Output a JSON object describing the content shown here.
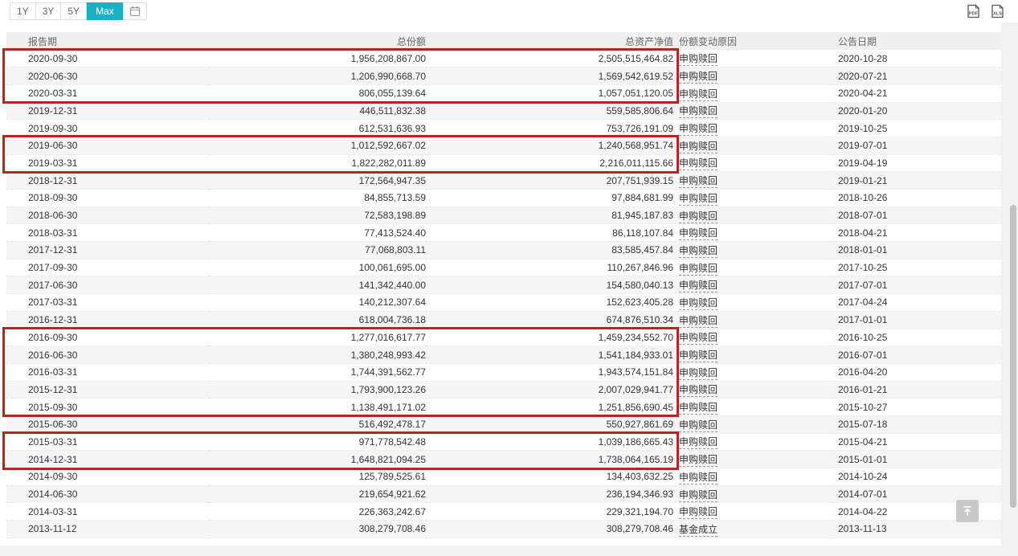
{
  "colors": {
    "accent": "#1bb0c4",
    "highlight_border": "#b3281e",
    "header_bg": "#efefef",
    "stripe_bg": "#f5f5f5"
  },
  "toolbar": {
    "range_buttons": [
      {
        "label": "1Y",
        "active": false
      },
      {
        "label": "3Y",
        "active": false
      },
      {
        "label": "5Y",
        "active": false
      },
      {
        "label": "Max",
        "active": true
      }
    ],
    "export": {
      "pdf_label": "PDF",
      "xls_label": "XLS"
    }
  },
  "table": {
    "columns": [
      "报告期",
      "总份额",
      "总资产净值",
      "份额变动原因",
      "公告日期"
    ],
    "rows": [
      {
        "period": "2020-09-30",
        "shares": "1,956,208,867.00",
        "nav": "2,505,515,464.82",
        "reason": "申购赎回",
        "date": "2020-10-28"
      },
      {
        "period": "2020-06-30",
        "shares": "1,206,990,668.70",
        "nav": "1,569,542,619.52",
        "reason": "申购赎回",
        "date": "2020-07-21"
      },
      {
        "period": "2020-03-31",
        "shares": "806,055,139.64",
        "nav": "1,057,051,120.05",
        "reason": "申购赎回",
        "date": "2020-04-21"
      },
      {
        "period": "2019-12-31",
        "shares": "446,511,832.38",
        "nav": "559,585,806.64",
        "reason": "申购赎回",
        "date": "2020-01-20"
      },
      {
        "period": "2019-09-30",
        "shares": "612,531,636.93",
        "nav": "753,726,191.09",
        "reason": "申购赎回",
        "date": "2019-10-25"
      },
      {
        "period": "2019-06-30",
        "shares": "1,012,592,667.02",
        "nav": "1,240,568,951.74",
        "reason": "申购赎回",
        "date": "2019-07-01"
      },
      {
        "period": "2019-03-31",
        "shares": "1,822,282,011.89",
        "nav": "2,216,011,115.66",
        "reason": "申购赎回",
        "date": "2019-04-19"
      },
      {
        "period": "2018-12-31",
        "shares": "172,564,947.35",
        "nav": "207,751,939.15",
        "reason": "申购赎回",
        "date": "2019-01-21"
      },
      {
        "period": "2018-09-30",
        "shares": "84,855,713.59",
        "nav": "97,884,681.99",
        "reason": "申购赎回",
        "date": "2018-10-26"
      },
      {
        "period": "2018-06-30",
        "shares": "72,583,198.89",
        "nav": "81,945,187.83",
        "reason": "申购赎回",
        "date": "2018-07-01"
      },
      {
        "period": "2018-03-31",
        "shares": "77,413,524.40",
        "nav": "86,118,107.84",
        "reason": "申购赎回",
        "date": "2018-04-21"
      },
      {
        "period": "2017-12-31",
        "shares": "77,068,803.11",
        "nav": "83,585,457.84",
        "reason": "申购赎回",
        "date": "2018-01-01"
      },
      {
        "period": "2017-09-30",
        "shares": "100,061,695.00",
        "nav": "110,267,846.96",
        "reason": "申购赎回",
        "date": "2017-10-25"
      },
      {
        "period": "2017-06-30",
        "shares": "141,342,440.00",
        "nav": "154,580,040.13",
        "reason": "申购赎回",
        "date": "2017-07-01"
      },
      {
        "period": "2017-03-31",
        "shares": "140,212,307.64",
        "nav": "152,623,405.28",
        "reason": "申购赎回",
        "date": "2017-04-24"
      },
      {
        "period": "2016-12-31",
        "shares": "618,004,736.18",
        "nav": "674,876,510.34",
        "reason": "申购赎回",
        "date": "2017-01-01"
      },
      {
        "period": "2016-09-30",
        "shares": "1,277,016,617.77",
        "nav": "1,459,234,552.70",
        "reason": "申购赎回",
        "date": "2016-10-25"
      },
      {
        "period": "2016-06-30",
        "shares": "1,380,248,993.42",
        "nav": "1,541,184,933.01",
        "reason": "申购赎回",
        "date": "2016-07-01"
      },
      {
        "period": "2016-03-31",
        "shares": "1,744,391,562.77",
        "nav": "1,943,574,151.84",
        "reason": "申购赎回",
        "date": "2016-04-20"
      },
      {
        "period": "2015-12-31",
        "shares": "1,793,900,123.26",
        "nav": "2,007,029,941.77",
        "reason": "申购赎回",
        "date": "2016-01-21"
      },
      {
        "period": "2015-09-30",
        "shares": "1,138,491,171.02",
        "nav": "1,251,856,690.45",
        "reason": "申购赎回",
        "date": "2015-10-27"
      },
      {
        "period": "2015-06-30",
        "shares": "516,492,478.17",
        "nav": "550,927,861.69",
        "reason": "申购赎回",
        "date": "2015-07-18"
      },
      {
        "period": "2015-03-31",
        "shares": "971,778,542.48",
        "nav": "1,039,186,665.43",
        "reason": "申购赎回",
        "date": "2015-04-21"
      },
      {
        "period": "2014-12-31",
        "shares": "1,648,821,094.25",
        "nav": "1,738,064,165.19",
        "reason": "申购赎回",
        "date": "2015-01-01"
      },
      {
        "period": "2014-09-30",
        "shares": "125,789,525.61",
        "nav": "134,403,632.25",
        "reason": "申购赎回",
        "date": "2014-10-24"
      },
      {
        "period": "2014-06-30",
        "shares": "219,654,921.62",
        "nav": "236,194,346.93",
        "reason": "申购赎回",
        "date": "2014-07-01"
      },
      {
        "period": "2014-03-31",
        "shares": "226,363,242.67",
        "nav": "229,321,194.70",
        "reason": "申购赎回",
        "date": "2014-04-22"
      },
      {
        "period": "2013-11-12",
        "shares": "308,279,708.46",
        "nav": "308,279,708.46",
        "reason": "基金成立",
        "date": "2013-11-13"
      }
    ]
  },
  "highlights": [
    {
      "start": 0,
      "end": 2
    },
    {
      "start": 5,
      "end": 6
    },
    {
      "start": 16,
      "end": 20
    },
    {
      "start": 22,
      "end": 23
    }
  ]
}
